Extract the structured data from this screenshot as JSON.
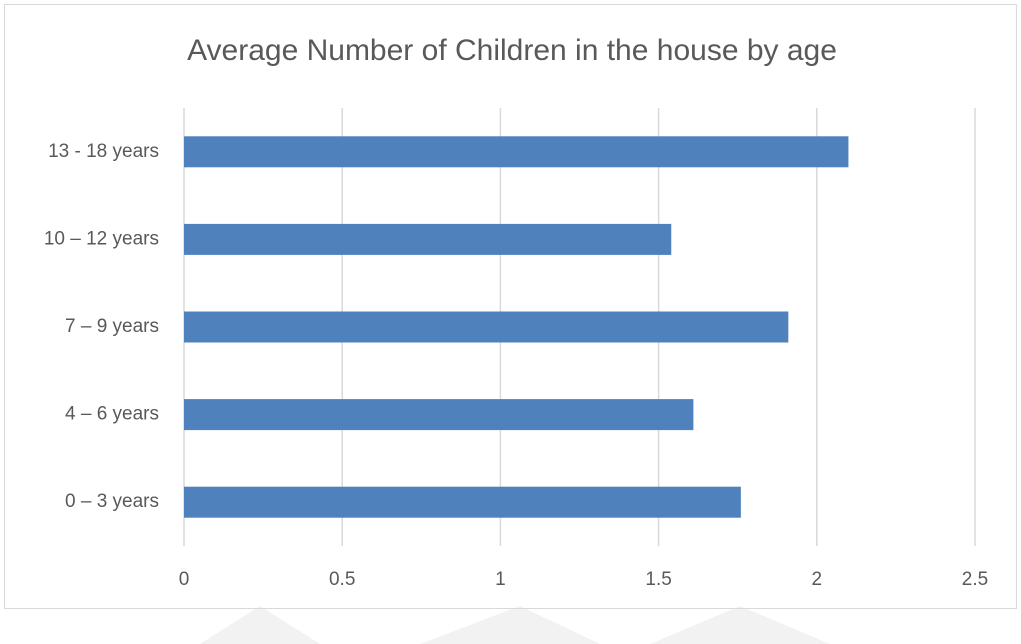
{
  "chart_data": {
    "type": "bar",
    "orientation": "horizontal",
    "title": "Average Number of Children in the house by age",
    "categories": [
      "0 – 3 years",
      "4 – 6 years",
      "7 – 9 years",
      "10 – 12 years",
      "13 - 18 years"
    ],
    "values": [
      1.76,
      1.61,
      1.91,
      1.54,
      2.1
    ],
    "xlim": [
      0,
      2.5
    ],
    "x_ticks": [
      0,
      0.5,
      1,
      1.5,
      2,
      2.5
    ],
    "x_tick_labels": [
      "0",
      "0.5",
      "1",
      "1.5",
      "2",
      "2.5"
    ],
    "xlabel": "",
    "ylabel": "",
    "grid": "vertical",
    "legend": "none",
    "colors": {
      "bar": "#4f81bd",
      "grid": "#d9d9d9",
      "text": "#595959",
      "border": "#d9d9d9",
      "background": "#ffffff",
      "watermark": "#f2f2f2"
    }
  }
}
